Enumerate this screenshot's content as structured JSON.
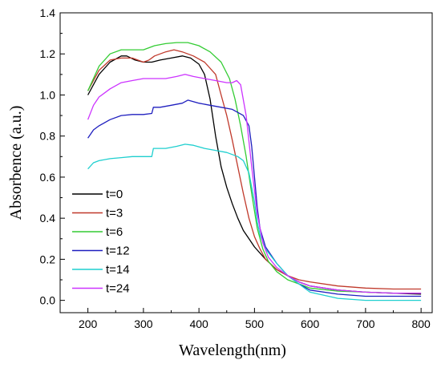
{
  "chart_data": {
    "type": "line",
    "xlabel": "Wavelength(nm)",
    "ylabel": "Absorbence (a.u.)",
    "xlim": [
      150,
      820
    ],
    "ylim": [
      -0.06,
      1.4
    ],
    "xticks": [
      200,
      300,
      400,
      500,
      600,
      700,
      800
    ],
    "yticks": [
      0.0,
      0.2,
      0.4,
      0.6,
      0.8,
      1.0,
      1.2,
      1.4
    ],
    "xtick_labels": [
      "200",
      "300",
      "400",
      "500",
      "600",
      "700",
      "800"
    ],
    "ytick_labels": [
      "0.0",
      "0.2",
      "0.4",
      "0.6",
      "0.8",
      "1.0",
      "1.2",
      "1.4"
    ],
    "grid": false,
    "legend_position": "lower-left",
    "series": [
      {
        "name": "t=0",
        "color": "#000000",
        "points": [
          [
            200,
            1.0
          ],
          [
            220,
            1.1
          ],
          [
            240,
            1.16
          ],
          [
            260,
            1.19
          ],
          [
            270,
            1.19
          ],
          [
            285,
            1.17
          ],
          [
            300,
            1.16
          ],
          [
            315,
            1.16
          ],
          [
            330,
            1.17
          ],
          [
            350,
            1.18
          ],
          [
            370,
            1.19
          ],
          [
            385,
            1.18
          ],
          [
            400,
            1.15
          ],
          [
            410,
            1.1
          ],
          [
            420,
            0.98
          ],
          [
            430,
            0.8
          ],
          [
            440,
            0.65
          ],
          [
            450,
            0.55
          ],
          [
            460,
            0.47
          ],
          [
            470,
            0.4
          ],
          [
            480,
            0.34
          ],
          [
            490,
            0.3
          ],
          [
            500,
            0.26
          ],
          [
            520,
            0.2
          ],
          [
            540,
            0.15
          ],
          [
            560,
            0.12
          ],
          [
            580,
            0.09
          ],
          [
            600,
            0.07
          ],
          [
            650,
            0.05
          ],
          [
            700,
            0.04
          ],
          [
            750,
            0.035
          ],
          [
            800,
            0.03
          ]
        ]
      },
      {
        "name": "t=3",
        "color": "#c0392b",
        "points": [
          [
            200,
            1.02
          ],
          [
            220,
            1.12
          ],
          [
            240,
            1.17
          ],
          [
            260,
            1.18
          ],
          [
            280,
            1.18
          ],
          [
            300,
            1.16
          ],
          [
            310,
            1.17
          ],
          [
            320,
            1.19
          ],
          [
            340,
            1.21
          ],
          [
            355,
            1.22
          ],
          [
            370,
            1.21
          ],
          [
            390,
            1.19
          ],
          [
            410,
            1.16
          ],
          [
            430,
            1.1
          ],
          [
            440,
            1.0
          ],
          [
            450,
            0.9
          ],
          [
            460,
            0.78
          ],
          [
            470,
            0.65
          ],
          [
            480,
            0.52
          ],
          [
            490,
            0.4
          ],
          [
            500,
            0.31
          ],
          [
            510,
            0.25
          ],
          [
            520,
            0.2
          ],
          [
            540,
            0.15
          ],
          [
            560,
            0.12
          ],
          [
            580,
            0.1
          ],
          [
            600,
            0.09
          ],
          [
            650,
            0.07
          ],
          [
            700,
            0.06
          ],
          [
            750,
            0.055
          ],
          [
            800,
            0.055
          ]
        ]
      },
      {
        "name": "t=6",
        "color": "#33cc33",
        "points": [
          [
            200,
            1.02
          ],
          [
            220,
            1.14
          ],
          [
            240,
            1.2
          ],
          [
            260,
            1.22
          ],
          [
            280,
            1.22
          ],
          [
            300,
            1.22
          ],
          [
            320,
            1.24
          ],
          [
            340,
            1.25
          ],
          [
            360,
            1.255
          ],
          [
            380,
            1.255
          ],
          [
            400,
            1.24
          ],
          [
            420,
            1.21
          ],
          [
            440,
            1.16
          ],
          [
            455,
            1.08
          ],
          [
            465,
            0.98
          ],
          [
            475,
            0.85
          ],
          [
            485,
            0.7
          ],
          [
            495,
            0.52
          ],
          [
            505,
            0.35
          ],
          [
            515,
            0.25
          ],
          [
            525,
            0.19
          ],
          [
            540,
            0.14
          ],
          [
            560,
            0.1
          ],
          [
            580,
            0.08
          ],
          [
            600,
            0.06
          ],
          [
            650,
            0.045
          ],
          [
            700,
            0.04
          ],
          [
            750,
            0.035
          ],
          [
            800,
            0.035
          ]
        ]
      },
      {
        "name": "t=12",
        "color": "#1f1fbf",
        "points": [
          [
            200,
            0.79
          ],
          [
            210,
            0.83
          ],
          [
            220,
            0.85
          ],
          [
            240,
            0.88
          ],
          [
            260,
            0.9
          ],
          [
            280,
            0.905
          ],
          [
            300,
            0.905
          ],
          [
            315,
            0.91
          ],
          [
            318,
            0.94
          ],
          [
            330,
            0.94
          ],
          [
            350,
            0.95
          ],
          [
            370,
            0.96
          ],
          [
            380,
            0.975
          ],
          [
            400,
            0.96
          ],
          [
            420,
            0.95
          ],
          [
            440,
            0.94
          ],
          [
            460,
            0.93
          ],
          [
            480,
            0.9
          ],
          [
            490,
            0.85
          ],
          [
            495,
            0.75
          ],
          [
            500,
            0.6
          ],
          [
            505,
            0.45
          ],
          [
            510,
            0.35
          ],
          [
            520,
            0.26
          ],
          [
            540,
            0.18
          ],
          [
            560,
            0.12
          ],
          [
            580,
            0.08
          ],
          [
            600,
            0.05
          ],
          [
            650,
            0.03
          ],
          [
            700,
            0.02
          ],
          [
            750,
            0.02
          ],
          [
            800,
            0.02
          ]
        ]
      },
      {
        "name": "t=14",
        "color": "#1fcfcf",
        "points": [
          [
            200,
            0.64
          ],
          [
            210,
            0.67
          ],
          [
            220,
            0.68
          ],
          [
            240,
            0.69
          ],
          [
            260,
            0.695
          ],
          [
            280,
            0.7
          ],
          [
            300,
            0.7
          ],
          [
            315,
            0.7
          ],
          [
            318,
            0.74
          ],
          [
            340,
            0.74
          ],
          [
            360,
            0.75
          ],
          [
            375,
            0.76
          ],
          [
            390,
            0.755
          ],
          [
            410,
            0.74
          ],
          [
            430,
            0.73
          ],
          [
            450,
            0.72
          ],
          [
            470,
            0.7
          ],
          [
            480,
            0.68
          ],
          [
            490,
            0.62
          ],
          [
            500,
            0.48
          ],
          [
            505,
            0.38
          ],
          [
            510,
            0.32
          ],
          [
            520,
            0.25
          ],
          [
            540,
            0.18
          ],
          [
            560,
            0.12
          ],
          [
            580,
            0.08
          ],
          [
            600,
            0.04
          ],
          [
            650,
            0.01
          ],
          [
            700,
            0.0
          ],
          [
            750,
            0.0
          ],
          [
            800,
            0.0
          ]
        ]
      },
      {
        "name": "t=24",
        "color": "#cc33ff",
        "points": [
          [
            200,
            0.88
          ],
          [
            210,
            0.95
          ],
          [
            220,
            0.99
          ],
          [
            240,
            1.03
          ],
          [
            260,
            1.06
          ],
          [
            280,
            1.07
          ],
          [
            300,
            1.08
          ],
          [
            320,
            1.08
          ],
          [
            340,
            1.08
          ],
          [
            360,
            1.09
          ],
          [
            375,
            1.1
          ],
          [
            390,
            1.09
          ],
          [
            410,
            1.08
          ],
          [
            430,
            1.07
          ],
          [
            450,
            1.06
          ],
          [
            460,
            1.06
          ],
          [
            468,
            1.07
          ],
          [
            475,
            1.05
          ],
          [
            485,
            0.9
          ],
          [
            495,
            0.65
          ],
          [
            505,
            0.42
          ],
          [
            515,
            0.28
          ],
          [
            525,
            0.21
          ],
          [
            540,
            0.16
          ],
          [
            560,
            0.12
          ],
          [
            580,
            0.09
          ],
          [
            600,
            0.07
          ],
          [
            650,
            0.05
          ],
          [
            700,
            0.04
          ],
          [
            750,
            0.035
          ],
          [
            800,
            0.035
          ]
        ]
      }
    ]
  }
}
